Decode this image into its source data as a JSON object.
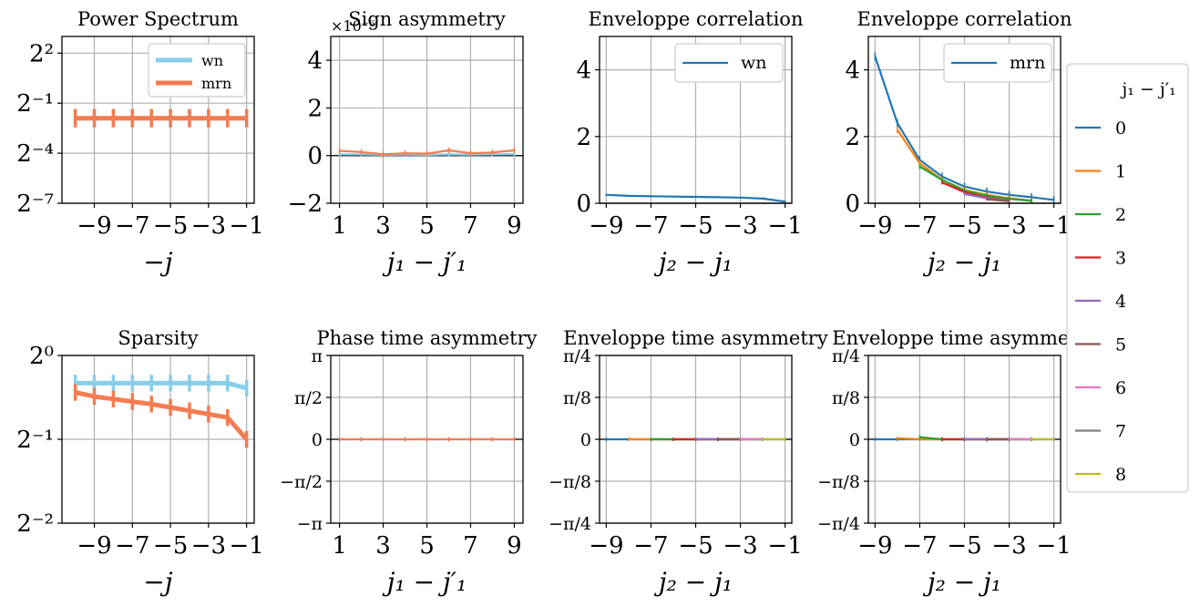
{
  "colors": {
    "wn": "#87ceeb",
    "mrn": "#f47c51",
    "tab": [
      "#1f77b4",
      "#ff7f0e",
      "#2ca02c",
      "#d62728",
      "#9467bd",
      "#8c564b",
      "#e377c2",
      "#7f7f7f",
      "#bcbd22"
    ]
  },
  "chart_data": [
    {
      "id": "power",
      "type": "line",
      "title": "Power Spectrum",
      "xlabel": "−j",
      "ylabel": "",
      "y_scale": "log2",
      "x": [
        -10,
        -9,
        -8,
        -7,
        -6,
        -5,
        -4,
        -3,
        -2,
        -1
      ],
      "xlim": [
        -10.7,
        -0.6
      ],
      "ylim": [
        -7,
        3
      ],
      "xticks": [
        -9,
        -7,
        -5,
        -3,
        -1
      ],
      "xtick_labels": [
        "−9",
        "−7",
        "−5",
        "−3",
        "−1"
      ],
      "yticks": [
        -7,
        -4,
        -1,
        2
      ],
      "ytick_labels": [
        "2⁻⁷",
        "2⁻⁴",
        "2⁻¹",
        "2²"
      ],
      "series": [
        {
          "name": "wn",
          "color_key": "wn",
          "values": [
            -1.9,
            -1.9,
            -1.9,
            -1.9,
            -1.9,
            -1.9,
            -1.9,
            -1.9,
            -1.9,
            -1.9
          ],
          "err": 0.5
        },
        {
          "name": "mrn",
          "color_key": "mrn",
          "values": [
            -1.9,
            -1.9,
            -1.9,
            -1.9,
            -1.9,
            -1.9,
            -1.9,
            -1.9,
            -1.9,
            -1.9
          ],
          "err": 0.55
        }
      ],
      "legend": {
        "position": "top-right",
        "entries": [
          "wn",
          "mrn"
        ]
      }
    },
    {
      "id": "sign",
      "type": "line",
      "title": "Sign asymmetry",
      "offset_text": "×10⁻⁶",
      "xlabel": "j₁ − j′₁",
      "x": [
        1,
        2,
        3,
        4,
        5,
        6,
        7,
        8,
        9
      ],
      "xlim": [
        0.6,
        9.4
      ],
      "ylim": [
        -2,
        5
      ],
      "xticks": [
        1,
        3,
        5,
        7,
        9
      ],
      "xtick_labels": [
        "1",
        "3",
        "5",
        "7",
        "9"
      ],
      "yticks": [
        -2,
        0,
        2,
        4
      ],
      "ytick_labels": [
        "−2",
        "0",
        "2",
        "4"
      ],
      "zero_line": true,
      "series": [
        {
          "name": "wn",
          "color_key": "wn",
          "values": [
            0.05,
            0.05,
            0.03,
            0.04,
            0.03,
            0.05,
            0.04,
            0.05,
            0.06
          ],
          "err": 0.1
        },
        {
          "name": "mrn",
          "color_key": "mrn",
          "values": [
            0.2,
            0.15,
            0.05,
            0.1,
            0.08,
            0.22,
            0.1,
            0.13,
            0.22
          ],
          "err": 0.12
        }
      ]
    },
    {
      "id": "env-wn",
      "type": "line",
      "title": "Enveloppe correlation",
      "xlabel": "j₂ − j₁",
      "x": [
        -9,
        -8,
        -7,
        -6,
        -5,
        -4,
        -3,
        -2,
        -1
      ],
      "xlim": [
        -9.3,
        -0.7
      ],
      "ylim": [
        0,
        5
      ],
      "xticks": [
        -9,
        -7,
        -5,
        -3,
        -1
      ],
      "xtick_labels": [
        "−9",
        "−7",
        "−5",
        "−3",
        "−1"
      ],
      "yticks": [
        0,
        2,
        4
      ],
      "ytick_labels": [
        "0",
        "2",
        "4"
      ],
      "zero_line": true,
      "series": [
        {
          "name": "0",
          "color_index": 0,
          "x": [
            -9,
            -8,
            -7,
            -6,
            -5,
            -4,
            -3,
            -2,
            -1
          ],
          "values": [
            0.25,
            0.22,
            0.21,
            0.2,
            0.19,
            0.18,
            0.17,
            0.14,
            0.05
          ],
          "err": 0.03
        }
      ],
      "legend": {
        "position": "top-right",
        "entries": [
          "wn"
        ]
      }
    },
    {
      "id": "env-mrn",
      "type": "line",
      "title": "Enveloppe correlation",
      "xlabel": "j₂ − j₁",
      "x": [
        -9,
        -8,
        -7,
        -6,
        -5,
        -4,
        -3,
        -2,
        -1
      ],
      "xlim": [
        -9.3,
        -0.7
      ],
      "ylim": [
        0,
        5
      ],
      "xticks": [
        -9,
        -7,
        -5,
        -3,
        -1
      ],
      "xtick_labels": [
        "−9",
        "−7",
        "−5",
        "−3",
        "−1"
      ],
      "yticks": [
        0,
        2,
        4
      ],
      "ytick_labels": [
        "0",
        "2",
        "4"
      ],
      "zero_line": true,
      "series": [
        {
          "name": "0",
          "color_index": 0,
          "x": [
            -9,
            -8,
            -7,
            -6,
            -5,
            -4,
            -3,
            -2,
            -1
          ],
          "values": [
            4.4,
            2.4,
            1.3,
            0.8,
            0.5,
            0.35,
            0.25,
            0.18,
            0.1
          ],
          "err": 0.12
        },
        {
          "name": "1",
          "color_index": 1,
          "x": [
            -8,
            -7,
            -6,
            -5,
            -4,
            -3,
            -2
          ],
          "values": [
            2.2,
            1.2,
            0.7,
            0.4,
            0.25,
            0.15,
            0.08
          ],
          "err": 0.1
        },
        {
          "name": "2",
          "color_index": 2,
          "x": [
            -7,
            -6,
            -5,
            -4,
            -3,
            -2
          ],
          "values": [
            1.1,
            0.7,
            0.38,
            0.22,
            0.13,
            0.07
          ],
          "err": 0.08
        },
        {
          "name": "3",
          "color_index": 3,
          "x": [
            -6,
            -5,
            -4,
            -3
          ],
          "values": [
            0.62,
            0.33,
            0.17,
            0.08
          ],
          "err": 0.06
        },
        {
          "name": "4",
          "color_index": 4,
          "x": [
            -5,
            -4,
            -3
          ],
          "values": [
            0.28,
            0.15,
            0.07
          ],
          "err": 0.05
        },
        {
          "name": "5",
          "color_index": 5,
          "x": [
            -4,
            -3
          ],
          "values": [
            0.12,
            0.06
          ],
          "err": 0.04
        }
      ],
      "legend": {
        "position": "top-right",
        "entries": [
          "mrn"
        ]
      }
    },
    {
      "id": "sparsity",
      "type": "line",
      "title": "Sparsity",
      "xlabel": "−j",
      "y_scale": "log2",
      "x": [
        -10,
        -9,
        -8,
        -7,
        -6,
        -5,
        -4,
        -3,
        -2,
        -1
      ],
      "xlim": [
        -10.7,
        -0.6
      ],
      "ylim": [
        -2,
        0
      ],
      "xticks": [
        -9,
        -7,
        -5,
        -3,
        -1
      ],
      "xtick_labels": [
        "−9",
        "−7",
        "−5",
        "−3",
        "−1"
      ],
      "yticks": [
        -2,
        -1,
        0
      ],
      "ytick_labels": [
        "2⁻²",
        "2⁻¹",
        "2⁰"
      ],
      "series": [
        {
          "name": "wn",
          "color_key": "wn",
          "values": [
            -0.33,
            -0.33,
            -0.33,
            -0.33,
            -0.33,
            -0.33,
            -0.33,
            -0.33,
            -0.33,
            -0.39
          ],
          "err": 0.1
        },
        {
          "name": "mrn",
          "color_key": "mrn",
          "values": [
            -0.44,
            -0.49,
            -0.52,
            -0.55,
            -0.58,
            -0.62,
            -0.66,
            -0.7,
            -0.74,
            -1.0
          ],
          "err": 0.1
        }
      ]
    },
    {
      "id": "phase",
      "type": "line",
      "title": "Phase time asymmetry",
      "xlabel": "j₁ − j′₁",
      "x": [
        1,
        2,
        3,
        4,
        5,
        6,
        7,
        8,
        9
      ],
      "xlim": [
        0.6,
        9.4
      ],
      "ylim": [
        -3.1416,
        3.1416
      ],
      "xticks": [
        1,
        3,
        5,
        7,
        9
      ],
      "xtick_labels": [
        "1",
        "3",
        "5",
        "7",
        "9"
      ],
      "yticks": [
        -3.1416,
        -1.5708,
        0,
        1.5708,
        3.1416
      ],
      "ytick_labels": [
        "−π",
        "−π/2",
        "0",
        "π/2",
        "π"
      ],
      "zero_line": true,
      "series": [
        {
          "name": "wn",
          "color_key": "wn",
          "values": [
            0,
            0,
            0,
            0,
            0,
            0,
            0,
            0,
            0
          ],
          "err": 0.08
        },
        {
          "name": "mrn",
          "color_key": "mrn",
          "values": [
            0,
            0,
            0,
            0,
            0,
            0,
            0,
            0,
            0
          ],
          "err": 0.08
        }
      ]
    },
    {
      "id": "envtime-wn",
      "type": "line",
      "title": "Enveloppe time asymmetry",
      "xlabel": "j₂ − j₁",
      "x": [
        -9,
        -8,
        -7,
        -6,
        -5,
        -4,
        -3,
        -2,
        -1
      ],
      "xlim": [
        -9.3,
        -0.7
      ],
      "ylim": [
        -0.7854,
        0.7854
      ],
      "xticks": [
        -9,
        -7,
        -5,
        -3,
        -1
      ],
      "xtick_labels": [
        "−9",
        "−7",
        "−5",
        "−3",
        "−1"
      ],
      "yticks": [
        -0.7854,
        -0.3927,
        0,
        0.3927,
        0.7854
      ],
      "ytick_labels": [
        "−π/4",
        "−π/8",
        "0",
        "π/8",
        "π/4"
      ],
      "zero_line": true,
      "series": [
        {
          "name": "0",
          "color_index": 0,
          "x": [
            -9,
            -8,
            -7,
            -6,
            -5,
            -4,
            -3,
            -2,
            -1
          ],
          "values": [
            0,
            0,
            0,
            0,
            0,
            0,
            0,
            0,
            0
          ],
          "err": 0.015
        },
        {
          "name": "1",
          "color_index": 1,
          "x": [
            -8,
            -7,
            -6,
            -5,
            -4,
            -3,
            -2
          ],
          "values": [
            0,
            0,
            0,
            0,
            0,
            0,
            0
          ],
          "err": 0.015
        },
        {
          "name": "2",
          "color_index": 2,
          "x": [
            -7,
            -6,
            -5,
            -4,
            -3,
            -2
          ],
          "values": [
            0,
            0,
            0,
            0,
            0,
            0
          ],
          "err": 0.015
        },
        {
          "name": "3",
          "color_index": 3,
          "x": [
            -6,
            -5,
            -4,
            -3
          ],
          "values": [
            0,
            0,
            0,
            0
          ],
          "err": 0.015
        },
        {
          "name": "4",
          "color_index": 4,
          "x": [
            -5,
            -4,
            -3
          ],
          "values": [
            0,
            0,
            0
          ],
          "err": 0.015
        },
        {
          "name": "5",
          "color_index": 5,
          "x": [
            -4,
            -3
          ],
          "values": [
            0,
            0
          ],
          "err": 0.015
        },
        {
          "name": "6",
          "color_index": 6,
          "x": [
            -3,
            -2
          ],
          "values": [
            0,
            0
          ],
          "err": 0.015
        },
        {
          "name": "7",
          "color_index": 7,
          "x": [
            -2
          ],
          "values": [
            0
          ],
          "err": 0.015
        },
        {
          "name": "8",
          "color_index": 8,
          "x": [
            -1,
            -2
          ],
          "values": [
            0,
            0
          ],
          "err": 0.015
        }
      ]
    },
    {
      "id": "envtime-mrn",
      "type": "line",
      "title": "Enveloppe time asymmetry",
      "xlabel": "j₂ − j₁",
      "x": [
        -9,
        -8,
        -7,
        -6,
        -5,
        -4,
        -3,
        -2,
        -1
      ],
      "xlim": [
        -9.3,
        -0.7
      ],
      "ylim": [
        -0.7854,
        0.7854
      ],
      "xticks": [
        -9,
        -7,
        -5,
        -3,
        -1
      ],
      "xtick_labels": [
        "−9",
        "−7",
        "−5",
        "−3",
        "−1"
      ],
      "yticks": [
        -0.7854,
        -0.3927,
        0,
        0.3927,
        0.7854
      ],
      "ytick_labels": [
        "−π/4",
        "−π/8",
        "0",
        "π/8",
        "π/4"
      ],
      "zero_line": true,
      "series": [
        {
          "name": "0",
          "color_index": 0,
          "x": [
            -9,
            -8,
            -7,
            -6,
            -5,
            -4,
            -3,
            -2,
            -1
          ],
          "values": [
            0,
            0,
            0,
            0,
            0,
            0,
            0,
            0,
            0
          ],
          "err": 0.015
        },
        {
          "name": "1",
          "color_index": 1,
          "x": [
            -8,
            -7,
            -6,
            -5,
            -4,
            -3,
            -2
          ],
          "values": [
            0.01,
            0,
            0,
            0,
            0,
            0,
            0
          ],
          "err": 0.015
        },
        {
          "name": "2",
          "color_index": 2,
          "x": [
            -7,
            -6,
            -5,
            -4,
            -3,
            -2
          ],
          "values": [
            0.02,
            0,
            0,
            0,
            0,
            0
          ],
          "err": 0.02
        },
        {
          "name": "3",
          "color_index": 3,
          "x": [
            -6,
            -5,
            -4,
            -3
          ],
          "values": [
            0,
            0,
            0,
            0
          ],
          "err": 0.015
        },
        {
          "name": "4",
          "color_index": 4,
          "x": [
            -5,
            -4,
            -3
          ],
          "values": [
            0,
            0,
            0
          ],
          "err": 0.015
        },
        {
          "name": "5",
          "color_index": 5,
          "x": [
            -4,
            -3
          ],
          "values": [
            0,
            0
          ],
          "err": 0.015
        },
        {
          "name": "6",
          "color_index": 6,
          "x": [
            -3,
            -2
          ],
          "values": [
            0,
            0
          ],
          "err": 0.015
        },
        {
          "name": "7",
          "color_index": 7,
          "x": [
            -2
          ],
          "values": [
            0
          ],
          "err": 0.015
        },
        {
          "name": "8",
          "color_index": 8,
          "x": [
            -1,
            -2
          ],
          "values": [
            0,
            0
          ],
          "err": 0.015
        }
      ]
    }
  ],
  "shared_legend": {
    "title": "j₁ − j′₁",
    "entries": [
      "0",
      "1",
      "2",
      "3",
      "4",
      "5",
      "6",
      "7",
      "8"
    ]
  }
}
